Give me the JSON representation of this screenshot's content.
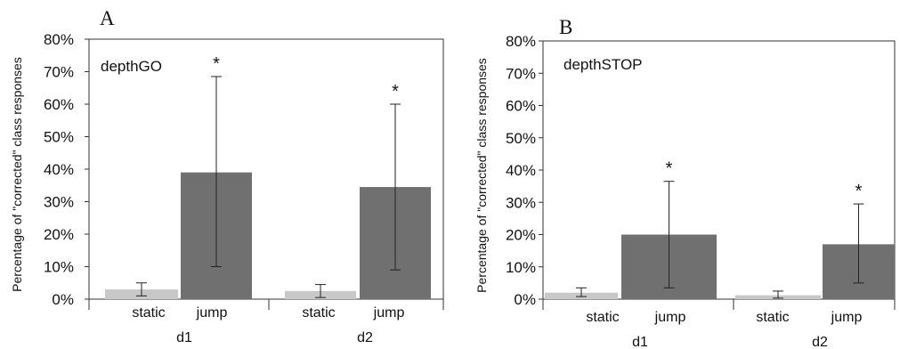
{
  "chart_data": [
    {
      "type": "bar",
      "panel_letter": "A",
      "title": "depthGO",
      "ylabel": "Percentage of \"corrected\" class responses",
      "ylim": [
        0,
        80
      ],
      "yticks": [
        "0%",
        "10%",
        "20%",
        "30%",
        "40%",
        "50%",
        "60%",
        "70%",
        "80%"
      ],
      "groups": [
        "d1",
        "d2"
      ],
      "categories": [
        "static",
        "jump",
        "static",
        "jump"
      ],
      "bars": [
        {
          "group": "d1",
          "category": "static",
          "value": 3,
          "err_low": 1,
          "err_high": 5,
          "color": "#c8c8c8",
          "marker": ""
        },
        {
          "group": "d1",
          "category": "jump",
          "value": 39,
          "err_low": 10,
          "err_high": 68.5,
          "color": "#707070",
          "marker": "*"
        },
        {
          "group": "d2",
          "category": "static",
          "value": 2.5,
          "err_low": 0.5,
          "err_high": 4.5,
          "color": "#c8c8c8",
          "marker": ""
        },
        {
          "group": "d2",
          "category": "jump",
          "value": 34.5,
          "err_low": 9,
          "err_high": 60,
          "color": "#707070",
          "marker": "*"
        }
      ]
    },
    {
      "type": "bar",
      "panel_letter": "B",
      "title": "depthSTOP",
      "ylabel": "Percentage of \"corrected\" class responses",
      "ylim": [
        0,
        80
      ],
      "yticks": [
        "0%",
        "10%",
        "20%",
        "30%",
        "40%",
        "50%",
        "60%",
        "70%",
        "80%"
      ],
      "groups": [
        "d1",
        "d2"
      ],
      "categories": [
        "static",
        "jump",
        "static",
        "jump"
      ],
      "bars": [
        {
          "group": "d1",
          "category": "static",
          "value": 2,
          "err_low": 0.8,
          "err_high": 3.5,
          "color": "#c8c8c8",
          "marker": ""
        },
        {
          "group": "d1",
          "category": "jump",
          "value": 20,
          "err_low": 3.5,
          "err_high": 36.5,
          "color": "#707070",
          "marker": "*"
        },
        {
          "group": "d2",
          "category": "static",
          "value": 1.2,
          "err_low": 0.3,
          "err_high": 2.5,
          "color": "#c8c8c8",
          "marker": ""
        },
        {
          "group": "d2",
          "category": "jump",
          "value": 17,
          "err_low": 5,
          "err_high": 29.5,
          "color": "#707070",
          "marker": "*"
        }
      ]
    }
  ]
}
